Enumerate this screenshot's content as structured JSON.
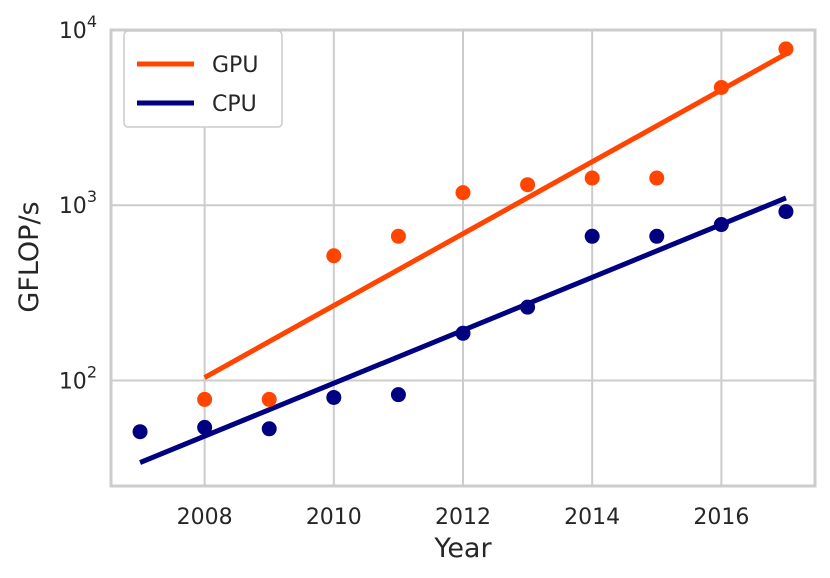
{
  "chart_data": {
    "type": "scatter",
    "xlabel": "Year",
    "ylabel": "GFLOP/s",
    "xlim": [
      2006.55,
      2017.45
    ],
    "ylim": [
      25,
      10000
    ],
    "yscale": "log",
    "grid": true,
    "legend_position": "top-left",
    "x_ticks": [
      2008,
      2010,
      2012,
      2014,
      2016
    ],
    "y_ticks": [
      {
        "value": 100,
        "base": "10",
        "exp": "2"
      },
      {
        "value": 1000,
        "base": "10",
        "exp": "3"
      },
      {
        "value": 10000,
        "base": "10",
        "exp": "4"
      }
    ],
    "series": [
      {
        "name": "GPU",
        "color": "#ff4500",
        "points": [
          {
            "x": 2008,
            "y": 78
          },
          {
            "x": 2009,
            "y": 78
          },
          {
            "x": 2010,
            "y": 515
          },
          {
            "x": 2011,
            "y": 665
          },
          {
            "x": 2012,
            "y": 1180
          },
          {
            "x": 2013,
            "y": 1310
          },
          {
            "x": 2014,
            "y": 1430
          },
          {
            "x": 2015,
            "y": 1430
          },
          {
            "x": 2016,
            "y": 4700
          },
          {
            "x": 2017,
            "y": 7800
          }
        ],
        "trend": [
          {
            "x": 2008,
            "y": 104
          },
          {
            "x": 2017,
            "y": 7300
          }
        ]
      },
      {
        "name": "CPU",
        "color": "#000080",
        "points": [
          {
            "x": 2007,
            "y": 51
          },
          {
            "x": 2008,
            "y": 54
          },
          {
            "x": 2009,
            "y": 53
          },
          {
            "x": 2010,
            "y": 80
          },
          {
            "x": 2011,
            "y": 83
          },
          {
            "x": 2012,
            "y": 186
          },
          {
            "x": 2013,
            "y": 262
          },
          {
            "x": 2014,
            "y": 665
          },
          {
            "x": 2015,
            "y": 665
          },
          {
            "x": 2016,
            "y": 776
          },
          {
            "x": 2017,
            "y": 920
          }
        ],
        "trend": [
          {
            "x": 2007,
            "y": 34
          },
          {
            "x": 2017,
            "y": 1100
          }
        ]
      }
    ]
  }
}
